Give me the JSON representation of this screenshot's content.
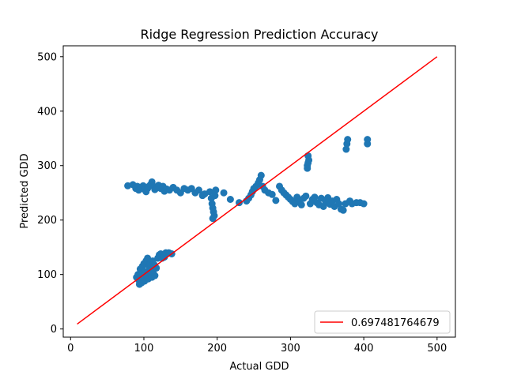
{
  "chart_data": {
    "type": "scatter",
    "title": "Ridge Regression Prediction Accuracy",
    "xlabel": "Actual GDD",
    "ylabel": "Predicted GDD",
    "xlim": [
      -10,
      525
    ],
    "ylim": [
      -15,
      520
    ],
    "xticks": [
      0,
      100,
      200,
      300,
      400,
      500
    ],
    "yticks": [
      0,
      100,
      200,
      300,
      400,
      500
    ],
    "grid": false,
    "legend_position": "lower-right",
    "colors": {
      "points": "#1f77b4",
      "line": "#ff0000",
      "axes": "#000000"
    },
    "series": [
      {
        "kind": "scatter",
        "points": [
          [
            78,
            263
          ],
          [
            85,
            265
          ],
          [
            89,
            258
          ],
          [
            91,
            262
          ],
          [
            93,
            255
          ],
          [
            96,
            260
          ],
          [
            99,
            263
          ],
          [
            101,
            256
          ],
          [
            103,
            252
          ],
          [
            105,
            258
          ],
          [
            107,
            262
          ],
          [
            109,
            265
          ],
          [
            111,
            270
          ],
          [
            113,
            262
          ],
          [
            115,
            256
          ],
          [
            118,
            260
          ],
          [
            120,
            264
          ],
          [
            123,
            258
          ],
          [
            126,
            262
          ],
          [
            128,
            253
          ],
          [
            131,
            257
          ],
          [
            135,
            255
          ],
          [
            140,
            260
          ],
          [
            145,
            255
          ],
          [
            150,
            250
          ],
          [
            155,
            258
          ],
          [
            160,
            255
          ],
          [
            165,
            258
          ],
          [
            170,
            250
          ],
          [
            175,
            255
          ],
          [
            180,
            245
          ],
          [
            183,
            248
          ],
          [
            190,
            252
          ],
          [
            192,
            240
          ],
          [
            193,
            230
          ],
          [
            194,
            222
          ],
          [
            195,
            215
          ],
          [
            196,
            208
          ],
          [
            194,
            203
          ],
          [
            197,
            245
          ],
          [
            198,
            255
          ],
          [
            209,
            250
          ],
          [
            218,
            238
          ],
          [
            230,
            232
          ],
          [
            240,
            235
          ],
          [
            243,
            240
          ],
          [
            246,
            246
          ],
          [
            248,
            252
          ],
          [
            250,
            258
          ],
          [
            253,
            262
          ],
          [
            256,
            268
          ],
          [
            258,
            274
          ],
          [
            260,
            282
          ],
          [
            262,
            262
          ],
          [
            265,
            255
          ],
          [
            270,
            250
          ],
          [
            275,
            247
          ],
          [
            280,
            236
          ],
          [
            285,
            262
          ],
          [
            288,
            255
          ],
          [
            291,
            250
          ],
          [
            294,
            246
          ],
          [
            297,
            242
          ],
          [
            300,
            238
          ],
          [
            303,
            234
          ],
          [
            306,
            230
          ],
          [
            309,
            242
          ],
          [
            312,
            236
          ],
          [
            315,
            228
          ],
          [
            318,
            240
          ],
          [
            321,
            244
          ],
          [
            323,
            300
          ],
          [
            324,
            305
          ],
          [
            325,
            310
          ],
          [
            323,
            295
          ],
          [
            324,
            318
          ],
          [
            327,
            230
          ],
          [
            330,
            238
          ],
          [
            333,
            242
          ],
          [
            336,
            232
          ],
          [
            339,
            228
          ],
          [
            342,
            240
          ],
          [
            345,
            225
          ],
          [
            348,
            233
          ],
          [
            351,
            241
          ],
          [
            354,
            229
          ],
          [
            357,
            235
          ],
          [
            360,
            225
          ],
          [
            363,
            238
          ],
          [
            366,
            230
          ],
          [
            369,
            220
          ],
          [
            372,
            218
          ],
          [
            375,
            230
          ],
          [
            376,
            330
          ],
          [
            377,
            340
          ],
          [
            378,
            348
          ],
          [
            381,
            235
          ],
          [
            384,
            230
          ],
          [
            390,
            232
          ],
          [
            395,
            232
          ],
          [
            400,
            230
          ],
          [
            405,
            340
          ],
          [
            405,
            348
          ],
          [
            90,
            95
          ],
          [
            92,
            100
          ],
          [
            93,
            90
          ],
          [
            94,
            82
          ],
          [
            95,
            110
          ],
          [
            96,
            105
          ],
          [
            97,
            85
          ],
          [
            98,
            115
          ],
          [
            99,
            95
          ],
          [
            100,
            120
          ],
          [
            101,
            88
          ],
          [
            102,
            105
          ],
          [
            103,
            125
          ],
          [
            104,
            98
          ],
          [
            105,
            130
          ],
          [
            106,
            92
          ],
          [
            107,
            115
          ],
          [
            108,
            100
          ],
          [
            109,
            120
          ],
          [
            110,
            108
          ],
          [
            111,
            95
          ],
          [
            112,
            125
          ],
          [
            113,
            102
          ],
          [
            114,
            118
          ],
          [
            115,
            98
          ],
          [
            117,
            112
          ],
          [
            119,
            130
          ],
          [
            121,
            136
          ],
          [
            123,
            138
          ],
          [
            125,
            130
          ],
          [
            128,
            132
          ],
          [
            130,
            140
          ],
          [
            134,
            140
          ],
          [
            138,
            138
          ]
        ]
      },
      {
        "kind": "line",
        "name": "0.697481764679",
        "points": [
          [
            9,
            9
          ],
          [
            500,
            500
          ]
        ]
      }
    ]
  }
}
